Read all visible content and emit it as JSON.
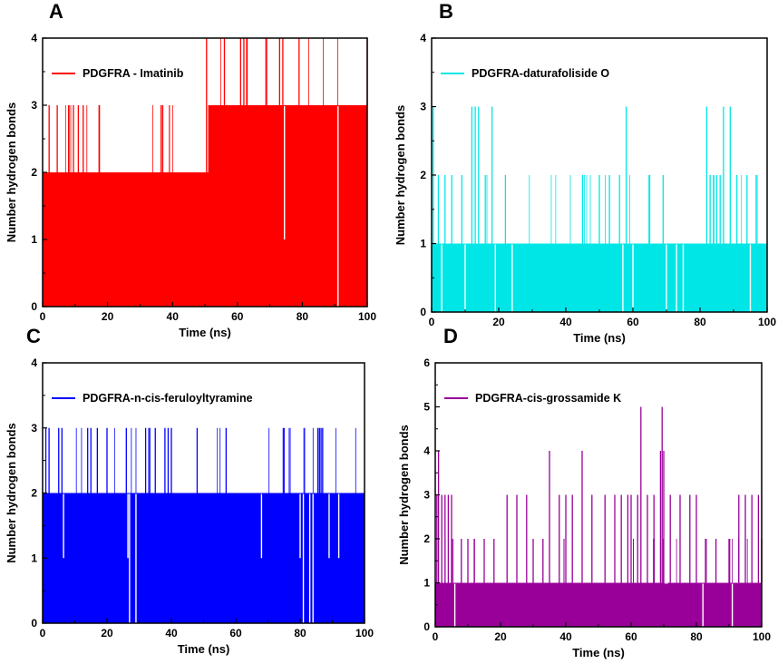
{
  "chart_data": [
    {
      "panel": "A",
      "type": "line",
      "title": "",
      "xlabel": "Time (ns)",
      "ylabel": "Number hydrogen bonds",
      "xlim": [
        0,
        100
      ],
      "ylim": [
        0,
        4
      ],
      "xticks": [
        0,
        20,
        40,
        60,
        80,
        100
      ],
      "yticks": [
        0,
        1,
        2,
        3,
        4
      ],
      "legend": "top-left",
      "series": [
        {
          "name": "PDGFRA - Imatinib",
          "color": "#ff0000",
          "base": [
            [
              0,
              2
            ],
            [
              51,
              3
            ],
            [
              100,
              3
            ]
          ],
          "floor": 0,
          "spikes": [
            [
              2,
              3
            ],
            [
              4.5,
              3
            ],
            [
              8,
              3
            ],
            [
              9.5,
              3
            ],
            [
              11,
              3
            ],
            [
              12.5,
              3
            ],
            [
              17.5,
              3
            ],
            [
              36.5,
              3
            ],
            [
              37,
              3
            ],
            [
              50.5,
              4
            ],
            [
              56,
              4
            ],
            [
              61,
              4
            ],
            [
              62,
              4
            ],
            [
              63,
              4
            ],
            [
              69,
              4
            ],
            [
              73,
              4
            ],
            [
              74,
              4
            ],
            [
              79,
              4
            ],
            [
              100,
              4
            ]
          ],
          "dips": [
            [
              74.5,
              1
            ],
            [
              91,
              0
            ]
          ]
        }
      ]
    },
    {
      "panel": "B",
      "type": "line",
      "title": "",
      "xlabel": "Time (ns)",
      "ylabel": "Number hydrogen bonds",
      "xlim": [
        0,
        100
      ],
      "ylim": [
        0,
        4
      ],
      "xticks": [
        0,
        20,
        40,
        60,
        80,
        100
      ],
      "yticks": [
        0,
        1,
        2,
        3,
        4
      ],
      "legend": "top-left",
      "series": [
        {
          "name": "PDGFRA-daturafoliside O",
          "color": "#00e6e6",
          "base": [
            [
              0,
              1
            ],
            [
              100,
              1
            ]
          ],
          "floor": 0,
          "spikes": [
            [
              0.5,
              3
            ],
            [
              2,
              2
            ],
            [
              4,
              2
            ],
            [
              6,
              2
            ],
            [
              9,
              2
            ],
            [
              12,
              3
            ],
            [
              13,
              3
            ],
            [
              14,
              3
            ],
            [
              16,
              2
            ],
            [
              18,
              3
            ],
            [
              22,
              2
            ],
            [
              45,
              2
            ],
            [
              50,
              2
            ],
            [
              53,
              2
            ],
            [
              56,
              2
            ],
            [
              58,
              3
            ],
            [
              65,
              2
            ],
            [
              69,
              2
            ],
            [
              82,
              3
            ],
            [
              83,
              2
            ],
            [
              84,
              2
            ],
            [
              85,
              2
            ],
            [
              86,
              2
            ],
            [
              87,
              3
            ],
            [
              89,
              3
            ],
            [
              91,
              2
            ],
            [
              94,
              2
            ],
            [
              97,
              2
            ]
          ],
          "dips": [
            [
              3,
              0
            ],
            [
              10,
              0
            ],
            [
              19,
              0
            ],
            [
              24,
              0
            ],
            [
              57,
              0
            ],
            [
              60,
              0
            ],
            [
              70,
              0
            ],
            [
              73,
              0
            ],
            [
              75,
              0
            ],
            [
              95,
              0
            ]
          ]
        }
      ]
    },
    {
      "panel": "C",
      "type": "line",
      "title": "",
      "xlabel": "Time (ns)",
      "ylabel": "Number hydrogen bonds",
      "xlim": [
        0,
        100
      ],
      "ylim": [
        0,
        4
      ],
      "xticks": [
        0,
        20,
        40,
        60,
        80,
        100
      ],
      "yticks": [
        0,
        1,
        2,
        3,
        4
      ],
      "legend": "top-left",
      "series": [
        {
          "name": "PDGFRA-n-cis-feruloyltyramine",
          "color": "#0000ff",
          "base": [
            [
              0,
              2
            ],
            [
              100,
              2
            ]
          ],
          "floor": 0,
          "spikes": [
            [
              1,
              3
            ],
            [
              2,
              3
            ],
            [
              5,
              3
            ],
            [
              6,
              3
            ],
            [
              14,
              3
            ],
            [
              15,
              3
            ],
            [
              17,
              3
            ],
            [
              20,
              3
            ],
            [
              26,
              3
            ],
            [
              32,
              3
            ],
            [
              33,
              3
            ],
            [
              35,
              3
            ],
            [
              38,
              3
            ],
            [
              39,
              3
            ],
            [
              40,
              3
            ],
            [
              48,
              3
            ],
            [
              57,
              3
            ],
            [
              75,
              3
            ],
            [
              85.5,
              3
            ],
            [
              86,
              3
            ],
            [
              86.5,
              3
            ],
            [
              87,
              3
            ]
          ],
          "dips": [
            [
              6.5,
              1
            ],
            [
              26.5,
              1
            ],
            [
              27,
              0
            ],
            [
              29,
              0
            ],
            [
              68,
              1
            ],
            [
              80,
              1
            ],
            [
              81,
              0
            ],
            [
              83,
              0
            ],
            [
              84,
              0
            ],
            [
              89,
              1
            ],
            [
              92,
              1
            ]
          ]
        }
      ]
    },
    {
      "panel": "D",
      "type": "line",
      "title": "",
      "xlabel": "Time (ns)",
      "ylabel": "Number hydrogen bonds",
      "xlim": [
        0,
        100
      ],
      "ylim": [
        0,
        6
      ],
      "xticks": [
        0,
        20,
        40,
        60,
        80,
        100
      ],
      "yticks": [
        0,
        1,
        2,
        3,
        4,
        5,
        6
      ],
      "legend": "top-left",
      "series": [
        {
          "name": "PDGFRA-cis-grossamide K",
          "color": "#990099",
          "base": [
            [
              0,
              1
            ],
            [
              100,
              1
            ]
          ],
          "floor": 0,
          "spikes": [
            [
              0.5,
              3
            ],
            [
              1,
              4
            ],
            [
              2,
              3
            ],
            [
              3,
              3
            ],
            [
              4,
              3
            ],
            [
              5,
              3
            ],
            [
              8,
              2
            ],
            [
              10,
              2
            ],
            [
              12,
              2
            ],
            [
              15,
              2
            ],
            [
              18,
              2
            ],
            [
              22,
              3
            ],
            [
              25,
              3
            ],
            [
              28,
              3
            ],
            [
              30,
              2
            ],
            [
              33,
              2
            ],
            [
              35,
              4
            ],
            [
              38,
              3
            ],
            [
              40,
              3
            ],
            [
              42,
              3
            ],
            [
              45,
              4
            ],
            [
              48,
              3
            ],
            [
              52,
              3
            ],
            [
              55,
              3
            ],
            [
              57,
              3
            ],
            [
              59,
              3
            ],
            [
              60,
              3
            ],
            [
              62,
              3
            ],
            [
              63,
              5
            ],
            [
              65,
              3
            ],
            [
              67,
              3
            ],
            [
              69,
              4
            ],
            [
              69.5,
              5
            ],
            [
              70,
              4
            ],
            [
              72,
              3
            ],
            [
              75,
              3
            ],
            [
              78,
              3
            ],
            [
              80,
              3
            ],
            [
              83,
              2
            ],
            [
              86,
              2
            ],
            [
              90,
              2
            ],
            [
              93,
              3
            ],
            [
              95,
              3
            ],
            [
              97,
              3
            ],
            [
              99,
              3
            ],
            [
              100,
              2
            ]
          ],
          "dips": [
            [
              6,
              0
            ],
            [
              70.5,
              1
            ],
            [
              71,
              1
            ],
            [
              82,
              0
            ],
            [
              91,
              0
            ]
          ]
        }
      ]
    }
  ]
}
